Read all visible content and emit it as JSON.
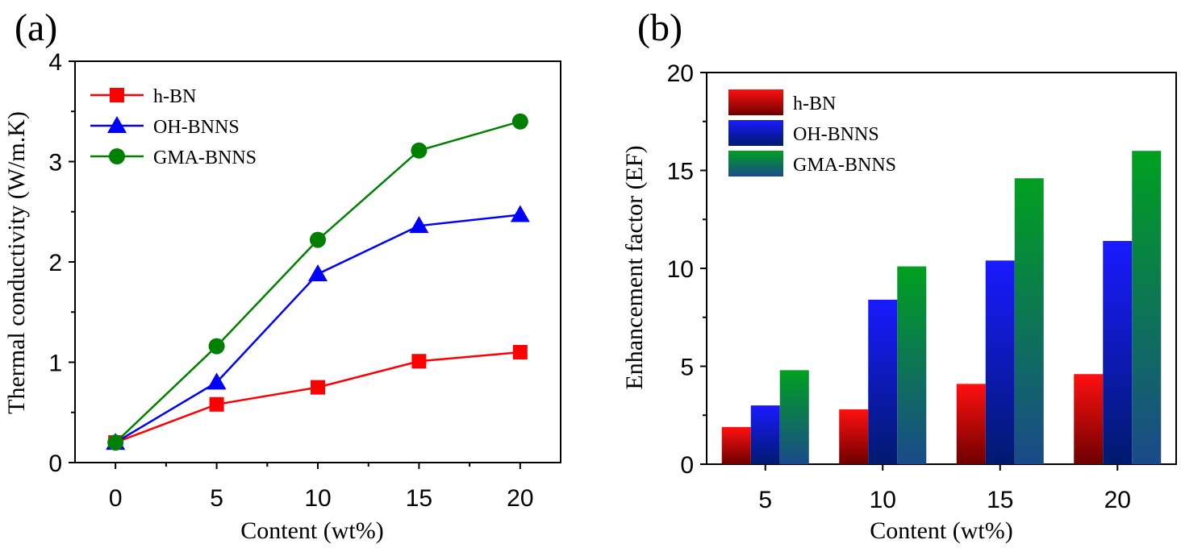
{
  "chart_data": [
    {
      "panel_label": "(a)",
      "type": "line",
      "x": [
        0,
        5,
        10,
        15,
        20
      ],
      "series": [
        {
          "name": "h-BN",
          "color": "#ff0000",
          "marker": "square",
          "values": [
            0.2,
            0.58,
            0.75,
            1.01,
            1.1
          ]
        },
        {
          "name": "OH-BNNS",
          "color": "#0000ff",
          "marker": "triangle",
          "values": [
            0.2,
            0.8,
            1.88,
            2.36,
            2.47
          ]
        },
        {
          "name": "GMA-BNNS",
          "color": "#008000",
          "marker": "circle",
          "values": [
            0.2,
            1.16,
            2.22,
            3.11,
            3.4
          ]
        }
      ],
      "xlabel": "Content (wt%)",
      "ylabel": "Thermal conductivity (W/m.K)",
      "xlim": [
        -2,
        22
      ],
      "ylim": [
        0,
        4
      ],
      "xticks": [
        "0",
        "5",
        "10",
        "15",
        "20"
      ],
      "yticks": [
        "0",
        "1",
        "2",
        "3",
        "4"
      ],
      "legend_position": "top-left",
      "grid": false
    },
    {
      "panel_label": "(b)",
      "type": "bar",
      "categories": [
        "5",
        "10",
        "15",
        "20"
      ],
      "series": [
        {
          "name": "h-BN",
          "color_top": "#ff1010",
          "color_bottom": "#6e0000",
          "values": [
            1.9,
            2.8,
            4.1,
            4.6
          ]
        },
        {
          "name": "OH-BNNS",
          "color_top": "#1a1aff",
          "color_bottom": "#001a6e",
          "values": [
            3.0,
            8.4,
            10.4,
            11.4
          ]
        },
        {
          "name": "GMA-BNNS",
          "color_top": "#00a020",
          "color_bottom": "#1a4a8a",
          "values": [
            4.8,
            10.1,
            14.6,
            16.0
          ]
        }
      ],
      "xlabel": "Content (wt%)",
      "ylabel": "Enhancement factor (EF)",
      "ylim": [
        0,
        20
      ],
      "yticks": [
        "0",
        "5",
        "10",
        "15",
        "20"
      ],
      "legend_position": "top-left",
      "grid": false
    }
  ]
}
